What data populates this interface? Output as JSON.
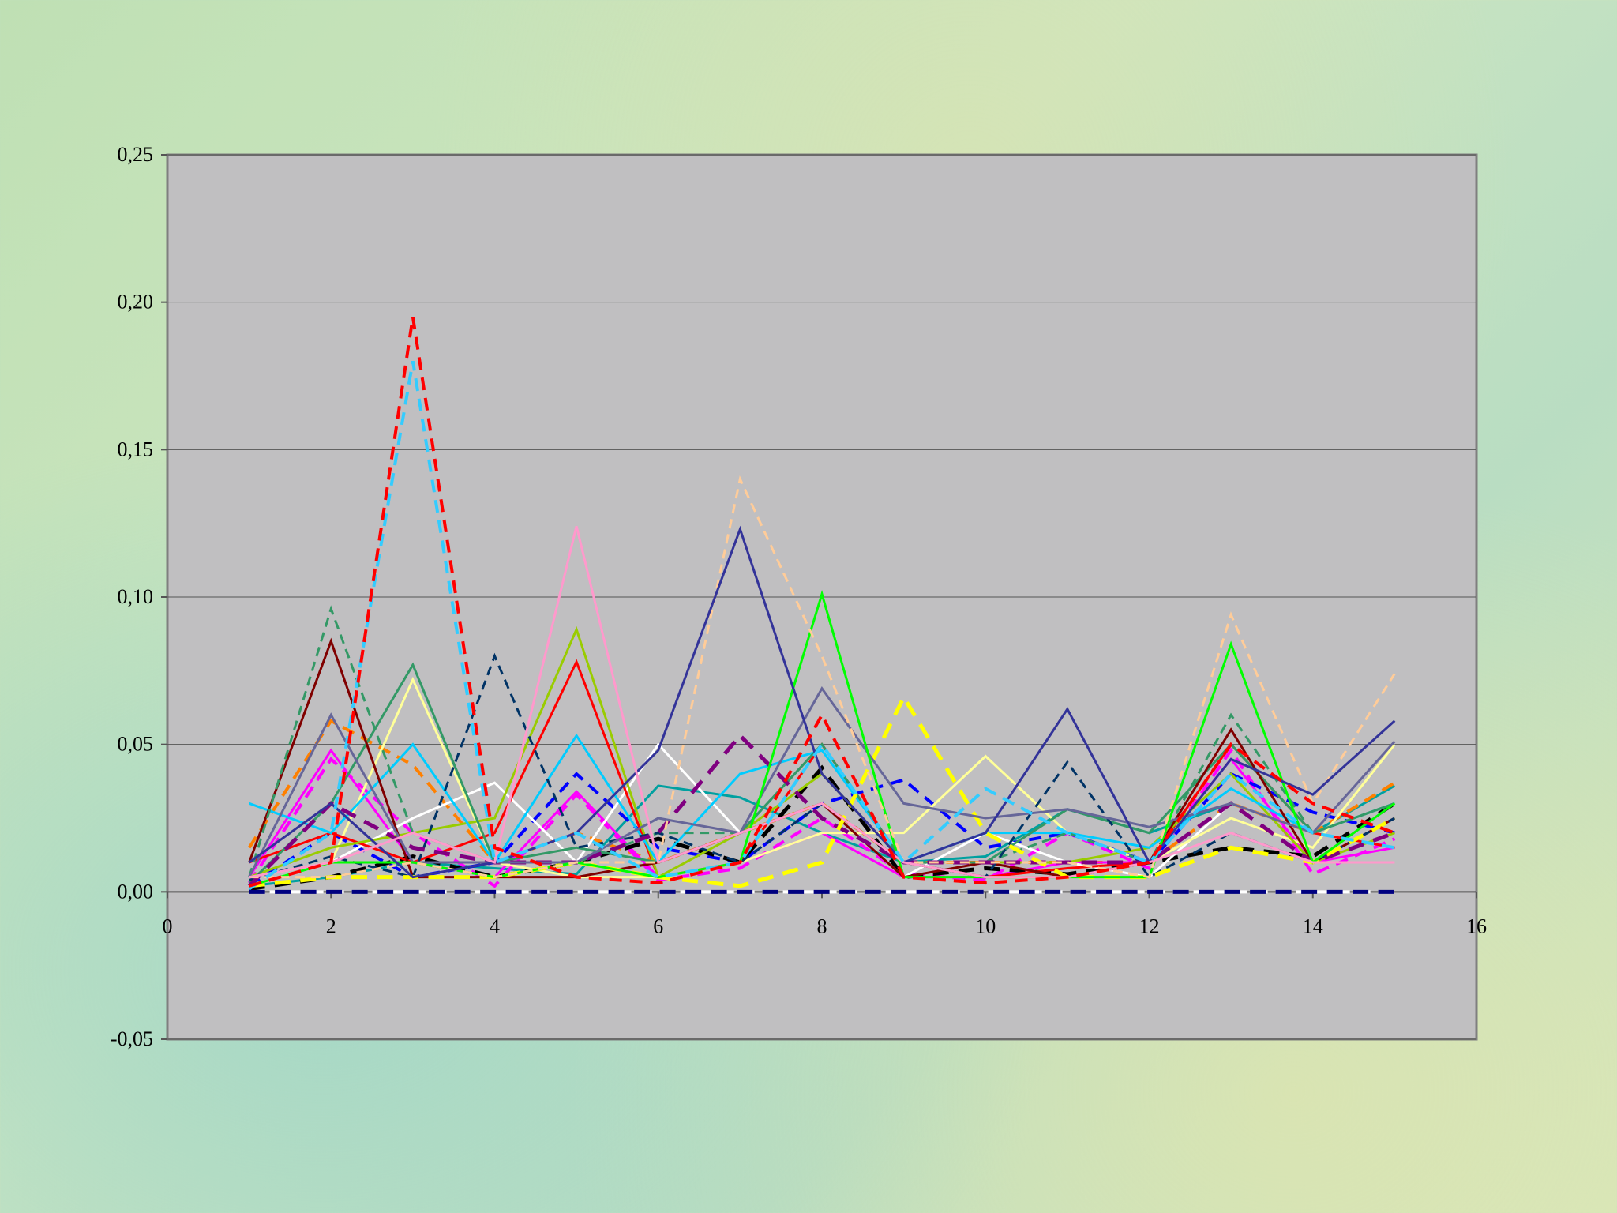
{
  "chart_data": {
    "type": "line",
    "x": [
      1,
      2,
      3,
      4,
      5,
      6,
      7,
      8,
      9,
      10,
      11,
      12,
      13,
      14,
      15
    ],
    "xlim": [
      0,
      16
    ],
    "xticks": [
      0,
      2,
      4,
      6,
      8,
      10,
      12,
      14,
      16
    ],
    "ylim": [
      -0.05,
      0.25
    ],
    "yticks": [
      {
        "value": -0.05,
        "label": "-0,05"
      },
      {
        "value": 0,
        "label": "0,00"
      },
      {
        "value": 0.05,
        "label": "0,05"
      },
      {
        "value": 0.1,
        "label": "0,10"
      },
      {
        "value": 0.15,
        "label": "0,15"
      },
      {
        "value": 0.2,
        "label": "0,20"
      },
      {
        "value": 0.25,
        "label": "0,25"
      }
    ],
    "grid": true,
    "series": [
      {
        "color": "#ffffff",
        "dashed": true,
        "width": 4,
        "values": [
          0,
          0,
          0,
          0,
          0,
          0,
          0,
          0,
          0,
          0,
          0,
          0,
          0,
          0,
          0
        ]
      },
      {
        "color": "#00a0a0",
        "dashed": false,
        "width": 3,
        "values": [
          0.002,
          0.005,
          0.01,
          0.008,
          0.006,
          0.036,
          0.032,
          0.02,
          0.01,
          0.012,
          0.028,
          0.02,
          0.03,
          0.02,
          0.036
        ]
      },
      {
        "color": "#ff8000",
        "dashed": true,
        "width": 4,
        "values": [
          0.015,
          0.058,
          0.043,
          0.01,
          0.02,
          0.01,
          0.02,
          0.03,
          0.01,
          0.01,
          0.01,
          0.01,
          0.03,
          0.02,
          0.037
        ]
      },
      {
        "color": "#ff00ff",
        "dashed": false,
        "width": 3,
        "values": [
          0.005,
          0.048,
          0.01,
          0.005,
          0.034,
          0.005,
          0.01,
          0.02,
          0.005,
          0.005,
          0.01,
          0.01,
          0.045,
          0.01,
          0.015
        ]
      },
      {
        "color": "#ff00ff",
        "dashed": true,
        "width": 4,
        "values": [
          0.003,
          0.045,
          0.02,
          0.002,
          0.033,
          0.004,
          0.008,
          0.025,
          0.006,
          0.004,
          0.02,
          0.008,
          0.048,
          0.006,
          0.018
        ]
      },
      {
        "color": "#0000ff",
        "dashed": true,
        "width": 4,
        "values": [
          0.002,
          0.02,
          0.005,
          0.01,
          0.04,
          0.015,
          0.01,
          0.03,
          0.038,
          0.015,
          0.02,
          0.01,
          0.04,
          0.027,
          0.02
        ]
      },
      {
        "color": "#000000",
        "dashed": true,
        "width": 5,
        "values": [
          0.001,
          0.005,
          0.012,
          0.005,
          0.01,
          0.018,
          0.01,
          0.042,
          0.005,
          0.008,
          0.006,
          0.01,
          0.015,
          0.012,
          0.03
        ]
      },
      {
        "color": "#ffffff",
        "dashed": false,
        "width": 3,
        "values": [
          0.002,
          0.01,
          0.025,
          0.037,
          0.01,
          0.05,
          0.02,
          0.03,
          0.005,
          0.02,
          0.01,
          0.005,
          0.03,
          0.02,
          0.03
        ]
      },
      {
        "color": "#ffff99",
        "dashed": false,
        "width": 3,
        "values": [
          0.005,
          0.01,
          0.072,
          0.01,
          0.005,
          0.005,
          0.01,
          0.02,
          0.02,
          0.046,
          0.02,
          0.01,
          0.025,
          0.015,
          0.05
        ]
      },
      {
        "color": "#ff0000",
        "dashed": false,
        "width": 3,
        "values": [
          0.01,
          0.02,
          0.01,
          0.02,
          0.078,
          0.005,
          0.01,
          0.05,
          0.01,
          0.005,
          0.008,
          0.01,
          0.05,
          0.02,
          0.015
        ]
      },
      {
        "color": "#99cc00",
        "dashed": false,
        "width": 3,
        "values": [
          0.005,
          0.015,
          0.02,
          0.025,
          0.089,
          0.005,
          0.02,
          0.04,
          0.01,
          0.01,
          0.01,
          0.015,
          0.04,
          0.01,
          0.02
        ]
      },
      {
        "color": "#00ccff",
        "dashed": false,
        "width": 3,
        "values": [
          0.03,
          0.02,
          0.05,
          0.01,
          0.053,
          0.01,
          0.04,
          0.048,
          0.01,
          0.02,
          0.02,
          0.015,
          0.035,
          0.02,
          0.03
        ]
      },
      {
        "color": "#339966",
        "dashed": false,
        "width": 3,
        "values": [
          0.003,
          0.03,
          0.077,
          0.01,
          0.015,
          0.01,
          0.02,
          0.05,
          0.01,
          0.01,
          0.028,
          0.02,
          0.05,
          0.02,
          0.03
        ]
      },
      {
        "color": "#800000",
        "dashed": false,
        "width": 3,
        "values": [
          0.01,
          0.085,
          0.005,
          0.005,
          0.005,
          0.01,
          0.02,
          0.03,
          0.005,
          0.01,
          0.005,
          0.01,
          0.055,
          0.01,
          0.025
        ]
      },
      {
        "color": "#339966",
        "dashed": true,
        "width": 3,
        "values": [
          0.005,
          0.096,
          0.02,
          0.01,
          0.01,
          0.02,
          0.02,
          0.05,
          0.01,
          0.01,
          0.02,
          0.01,
          0.06,
          0.02,
          0.03
        ]
      },
      {
        "color": "#003366",
        "dashed": true,
        "width": 3,
        "values": [
          0.004,
          0.012,
          0.005,
          0.08,
          0.015,
          0.02,
          0.01,
          0.03,
          0.01,
          0.005,
          0.044,
          0.005,
          0.02,
          0.01,
          0.025
        ]
      },
      {
        "color": "#800080",
        "dashed": true,
        "width": 5,
        "values": [
          0.002,
          0.03,
          0.015,
          0.01,
          0.01,
          0.02,
          0.053,
          0.025,
          0.01,
          0.01,
          0.01,
          0.01,
          0.03,
          0.01,
          0.02
        ]
      },
      {
        "color": "#ffff00",
        "dashed": true,
        "width": 5,
        "values": [
          0.002,
          0.005,
          0.005,
          0.005,
          0.01,
          0.005,
          0.002,
          0.01,
          0.066,
          0.02,
          0.005,
          0.005,
          0.015,
          0.01,
          0.025
        ]
      },
      {
        "color": "#666699",
        "dashed": false,
        "width": 3,
        "values": [
          0.005,
          0.06,
          0.01,
          0.01,
          0.01,
          0.025,
          0.02,
          0.069,
          0.03,
          0.025,
          0.028,
          0.022,
          0.03,
          0.02,
          0.051
        ]
      },
      {
        "color": "#00ff00",
        "dashed": false,
        "width": 3,
        "values": [
          0.002,
          0.01,
          0.01,
          0.005,
          0.01,
          0.005,
          0.01,
          0.101,
          0.005,
          0.005,
          0.005,
          0.005,
          0.084,
          0.01,
          0.03
        ]
      },
      {
        "color": "#ffcc99",
        "dashed": true,
        "width": 3,
        "values": [
          0.005,
          0.005,
          0.01,
          0.005,
          0.01,
          0.01,
          0.14,
          0.08,
          0.01,
          0.01,
          0.01,
          0.005,
          0.094,
          0.03,
          0.074
        ]
      },
      {
        "color": "#333399",
        "dashed": false,
        "width": 3,
        "values": [
          0.01,
          0.03,
          0.005,
          0.01,
          0.02,
          0.048,
          0.123,
          0.04,
          0.01,
          0.02,
          0.062,
          0.01,
          0.045,
          0.033,
          0.058
        ]
      },
      {
        "color": "#ff99cc",
        "dashed": false,
        "width": 3,
        "values": [
          0.005,
          0.01,
          0.02,
          0.01,
          0.124,
          0.01,
          0.02,
          0.03,
          0.01,
          0.005,
          0.005,
          0.01,
          0.02,
          0.01,
          0.01
        ]
      },
      {
        "color": "#33ccff",
        "dashed": true,
        "width": 4,
        "values": [
          0.001,
          0.02,
          0.18,
          0.01,
          0.02,
          0.005,
          0.01,
          0.05,
          0.01,
          0.035,
          0.02,
          0.01,
          0.04,
          0.02,
          0.015
        ]
      },
      {
        "color": "#ff0000",
        "dashed": true,
        "width": 4,
        "values": [
          0.002,
          0.01,
          0.195,
          0.015,
          0.005,
          0.003,
          0.01,
          0.06,
          0.005,
          0.003,
          0.005,
          0.01,
          0.05,
          0.03,
          0.02
        ]
      },
      {
        "color": "#000080",
        "dashed": true,
        "width": 5,
        "values": [
          0,
          0,
          0,
          0,
          0,
          0,
          0,
          0,
          0,
          0,
          0,
          0,
          0,
          0,
          0
        ]
      }
    ]
  }
}
